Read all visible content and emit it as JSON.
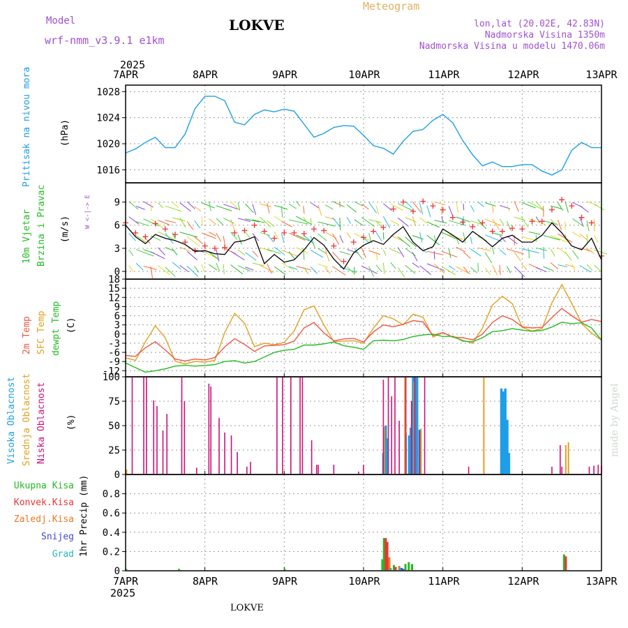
{
  "header": {
    "model_label": "Model",
    "model_name": "wrf-nmm_v3.9.1 e1km",
    "station": "LOKVE",
    "title": "Meteogram",
    "lonlat": "lon,lat (20.02E, 42.83N)",
    "elevation": "Nadmorska Visina 1350m",
    "model_elevation": "Nadmorska Visina u modelu 1470.06m",
    "year": "2025",
    "footer_station": "LOKVE",
    "credit": "made by Angel"
  },
  "colors": {
    "pressure": "#1e9ee6",
    "wind_speed": "#000000",
    "wind_gust": "#ee3333",
    "temp2m": "#ee5544",
    "sfc_temp": "#e0a020",
    "dewpt": "#22bb22",
    "cloud_high": "#1e9ee6",
    "cloud_mid": "#e0a020",
    "cloud_low": "#cc1177",
    "precip_total": "#22bb22",
    "precip_conv": "#ee3333",
    "precip_frozen": "#ee7722",
    "snow": "#4444dd",
    "hail": "#22bbbb"
  },
  "chart_data": [
    {
      "type": "line",
      "panel": "pressure",
      "ylabel": [
        "Pritisak na nivou mora",
        "(hPa)"
      ],
      "yticks": [
        1016,
        1020,
        1024,
        1028
      ],
      "ylim": [
        1014,
        1029
      ],
      "x_hours": [
        0,
        3,
        6,
        9,
        12,
        15,
        18,
        21,
        24,
        27,
        30,
        33,
        36,
        39,
        42,
        45,
        48,
        51,
        54,
        57,
        60,
        63,
        66,
        69,
        72,
        75,
        78,
        81,
        84,
        87,
        90,
        93,
        96,
        99,
        102,
        105,
        108,
        111,
        114,
        117,
        120,
        123,
        126,
        129,
        132,
        135,
        138,
        141,
        144
      ],
      "series": [
        {
          "values": [
            1018.6,
            1019.2,
            1020.2,
            1021.0,
            1019.4,
            1019.4,
            1021.5,
            1025.4,
            1027.3,
            1027.3,
            1026.6,
            1023.3,
            1022.9,
            1024.5,
            1025.2,
            1024.9,
            1025.3,
            1025.0,
            1023.0,
            1021.0,
            1021.6,
            1022.5,
            1022.8,
            1022.7,
            1021.3,
            1019.7,
            1019.3,
            1018.4,
            1020.4,
            1021.9,
            1022.2,
            1023.6,
            1024.5,
            1023.2,
            1020.5,
            1018.3,
            1016.6,
            1017.2,
            1016.5,
            1016.5,
            1016.8,
            1016.8,
            1015.8,
            1015.2,
            1016.0,
            1019.0,
            1020.2,
            1019.4,
            1019.4
          ]
        }
      ]
    },
    {
      "type": "line",
      "panel": "wind",
      "ylabel": [
        "10m Vjetar",
        "Brzina i Pravac",
        "(m/s)"
      ],
      "compass": "W <-|-> E",
      "yticks": [
        0,
        3,
        6,
        9
      ],
      "ylim": [
        -1,
        11.5
      ],
      "x_hours": [
        0,
        3,
        6,
        9,
        12,
        15,
        18,
        21,
        24,
        27,
        30,
        33,
        36,
        39,
        42,
        45,
        48,
        51,
        54,
        57,
        60,
        63,
        66,
        69,
        72,
        75,
        78,
        81,
        84,
        87,
        90,
        93,
        96,
        99,
        102,
        105,
        108,
        111,
        114,
        117,
        120,
        123,
        126,
        129,
        132,
        135,
        138,
        141,
        144
      ],
      "series": [
        {
          "name": "speed",
          "values": [
            6.0,
            4.5,
            3.6,
            4.8,
            4.3,
            4.0,
            3.5,
            2.6,
            2.7,
            2.3,
            2.2,
            3.8,
            4.0,
            4.5,
            1.0,
            2.2,
            1.2,
            1.5,
            2.8,
            4.4,
            3.4,
            1.6,
            0.3,
            2.4,
            3.4,
            4.0,
            3.5,
            4.8,
            5.8,
            3.8,
            2.7,
            3.2,
            5.5,
            4.7,
            3.8,
            5.2,
            4.3,
            3.2,
            4.3,
            4.7,
            3.8,
            3.8,
            4.7,
            6.3,
            5.0,
            3.3,
            2.8,
            4.3,
            1.5
          ]
        },
        {
          "name": "gust",
          "values": [
            6.3,
            5.0,
            4.5,
            6.2,
            5.5,
            4.8,
            3.8,
            2.7,
            3.3,
            3.0,
            3.1,
            5.0,
            5.3,
            6.0,
            5.2,
            4.3,
            5.0,
            5.0,
            4.9,
            5.5,
            5.3,
            3.3,
            1.3,
            3.8,
            4.4,
            5.2,
            5.7,
            8.1,
            9.0,
            7.8,
            9.1,
            8.5,
            8.0,
            7.0,
            6.4,
            5.8,
            6.3,
            5.2,
            5.2,
            5.6,
            5.5,
            6.5,
            6.5,
            8.0,
            9.3,
            8.5,
            7.0,
            6.3,
            2.0
          ]
        }
      ]
    },
    {
      "type": "line",
      "panel": "temperature",
      "ylabel": [
        "2m Temp",
        "SFC Temp",
        "dewpt Temp",
        "(C)"
      ],
      "yticks": [
        -12,
        -9,
        -6,
        -3,
        0,
        3,
        6,
        9,
        12,
        15,
        18
      ],
      "ylim": [
        -14,
        18
      ],
      "x_hours": [
        0,
        3,
        6,
        9,
        12,
        15,
        18,
        21,
        24,
        27,
        30,
        33,
        36,
        39,
        42,
        45,
        48,
        51,
        54,
        57,
        60,
        63,
        66,
        69,
        72,
        75,
        78,
        81,
        84,
        87,
        90,
        93,
        96,
        99,
        102,
        105,
        108,
        111,
        114,
        117,
        120,
        123,
        126,
        129,
        132,
        135,
        138,
        141,
        144
      ],
      "series": [
        {
          "name": "2m Temp",
          "values": [
            -7.0,
            -7.3,
            -4.5,
            -2.5,
            -5.2,
            -8.2,
            -8.8,
            -8.2,
            -8.5,
            -7.7,
            -4.2,
            -1.5,
            -3.4,
            -5.7,
            -3.9,
            -3.7,
            -3.5,
            -2.3,
            2.0,
            3.8,
            0.4,
            -2.2,
            -1.6,
            -1.4,
            -2.6,
            0.7,
            3.0,
            2.4,
            3.2,
            4.4,
            4.0,
            -0.5,
            0.5,
            -1.0,
            -1.2,
            -1.9,
            0.0,
            3.8,
            6.0,
            4.8,
            2.4,
            2.0,
            2.2,
            5.4,
            8.4,
            6.0,
            3.9,
            4.8,
            4.1
          ]
        },
        {
          "name": "SFC Temp",
          "values": [
            -7.8,
            -8.6,
            -2.5,
            2.7,
            -1.2,
            -8.9,
            -9.8,
            -9.0,
            -9.2,
            -8.6,
            0.5,
            6.8,
            3.5,
            -4.1,
            -3.0,
            -3.5,
            -2.7,
            1.0,
            8.0,
            9.2,
            3.0,
            -2.5,
            -2.3,
            -2.2,
            -3.0,
            2.0,
            6.0,
            5.0,
            3.0,
            6.5,
            5.5,
            -1.0,
            0.5,
            -1.0,
            -2.0,
            -3.0,
            2.0,
            9.5,
            12.4,
            10.0,
            2.2,
            1.0,
            1.8,
            10.2,
            16.2,
            10.0,
            3.5,
            0.3,
            -2.0
          ]
        },
        {
          "name": "dewpt Temp",
          "values": [
            -9.5,
            -11.0,
            -12.5,
            -12.0,
            -11.4,
            -10.5,
            -10.2,
            -10.5,
            -10.3,
            -10.0,
            -9.0,
            -8.7,
            -9.5,
            -9.0,
            -7.5,
            -6.0,
            -5.3,
            -5.0,
            -3.6,
            -3.6,
            -3.2,
            -2.6,
            -3.8,
            -4.3,
            -5.0,
            -2.2,
            -2.0,
            -2.2,
            -1.8,
            -0.8,
            -0.3,
            0.0,
            -0.8,
            -0.7,
            -2.3,
            -2.5,
            -1.2,
            0.8,
            1.1,
            1.8,
            1.3,
            0.9,
            1.2,
            2.3,
            3.9,
            3.4,
            3.7,
            2.0,
            -2.0
          ]
        }
      ]
    },
    {
      "type": "bar",
      "panel": "cloud",
      "ylabel": [
        "Visoka Oblacnost",
        "Srednja Oblacnost",
        "Niska Oblacnost",
        "(%)"
      ],
      "yticks": [
        0,
        25,
        50,
        75,
        100
      ],
      "ylim": [
        0,
        100
      ],
      "series": [
        {
          "name": "Visoka Oblacnost",
          "x_hours": [
            78,
            78.7,
            79.2,
            84.7,
            85.8,
            86.3,
            87.0,
            87.6,
            88.2,
            89.0,
            113.7,
            114.3,
            114.9,
            115.5,
            116.0
          ],
          "values": [
            22,
            50,
            37,
            42,
            40,
            48,
            100,
            100,
            100,
            46,
            88,
            85,
            88,
            56,
            22
          ]
        },
        {
          "name": "Srednja Oblacnost",
          "x_hours": [
            0.3,
            78.3,
            84.5,
            87.3,
            89.4,
            108.4,
            133.2,
            134.0
          ],
          "values": [
            5,
            48,
            100,
            95,
            47,
            100,
            30,
            33
          ]
        },
        {
          "name": "Niska Oblacnost",
          "x_hours": [
            2.0,
            5.5,
            6.3,
            8.5,
            9.5,
            11.3,
            12.5,
            17.0,
            17.8,
            21.5,
            25.2,
            25.8,
            28.3,
            30.0,
            32.0,
            33.8,
            36.7,
            37.8,
            45.8,
            47.5,
            50.0,
            52.8,
            53.5,
            56.3,
            57.8,
            58.3,
            63.0,
            70.5,
            72.0,
            78.0,
            79.5,
            80.5,
            81.5,
            82.8,
            84.8,
            86.5,
            87.5,
            89.0,
            90.5,
            103.8,
            129.0,
            131.5,
            132.0,
            140.3,
            141.7,
            143.0,
            144.0
          ],
          "values": [
            100,
            100,
            100,
            76,
            70,
            45,
            62,
            100,
            75,
            7,
            93,
            90,
            58,
            43,
            40,
            23,
            8,
            13,
            100,
            100,
            100,
            100,
            100,
            35,
            10,
            10,
            10,
            3,
            10,
            97,
            100,
            80,
            100,
            55,
            100,
            75,
            100,
            45,
            100,
            8,
            8,
            30,
            8,
            8,
            9,
            10,
            9
          ]
        }
      ]
    },
    {
      "type": "bar",
      "panel": "precip",
      "ylabel": [
        "1hr Precip (mm)"
      ],
      "legend": [
        "Ukupna Kisa",
        "Konvek.Kisa",
        "Zaledj.Kisa",
        "Snijeg",
        "Grad"
      ],
      "yticks": [
        0,
        0.2,
        0.4,
        0.6,
        0.8
      ],
      "ylim": [
        0,
        1.0
      ],
      "series": [
        {
          "name": "Ukupna Kisa",
          "x_hours": [
            0.5,
            16.5,
            48.5,
            78.0,
            78.5,
            79.0,
            79.5,
            80.5,
            81.5,
            82.0,
            85.0,
            86.0,
            87.0,
            133.0,
            133.5
          ],
          "values": [
            0.02,
            0.02,
            0.02,
            0.12,
            0.34,
            0.33,
            0.16,
            0.03,
            0.06,
            0.04,
            0.07,
            0.09,
            0.07,
            0.17,
            0.1
          ]
        },
        {
          "name": "Konvek.Kisa",
          "x_hours": [
            78.5,
            79.0,
            81.5,
            133.0
          ],
          "values": [
            0.34,
            0.3,
            0.04,
            0.15
          ]
        },
        {
          "name": "Zaledj.Kisa",
          "x_hours": [
            79.5,
            82.5
          ],
          "values": [
            0.14,
            0.05
          ]
        },
        {
          "name": "Snijeg",
          "x_hours": [
            83.5,
            84.0
          ],
          "values": [
            0.03,
            0.02
          ]
        },
        {
          "name": "Grad",
          "x_hours": [
            80.0,
            83.0
          ],
          "values": [
            0.02,
            0.03
          ]
        }
      ]
    }
  ],
  "x_axis": {
    "labels": [
      "7APR",
      "8APR",
      "9APR",
      "10APR",
      "11APR",
      "12APR",
      "13APR"
    ],
    "hours": [
      0,
      24,
      48,
      72,
      96,
      120,
      144
    ]
  }
}
